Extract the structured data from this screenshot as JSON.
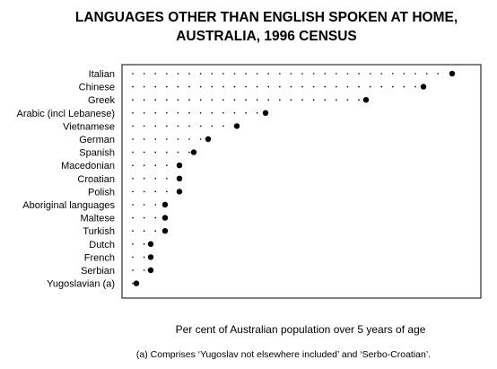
{
  "chart_data": {
    "type": "dot",
    "title_lines": [
      "LANGUAGES OTHER THAN ENGLISH SPOKEN AT HOME,",
      "AUSTRALIA, 1996 CENSUS"
    ],
    "xlabel": "Per cent of Australian population over 5 years of age",
    "footnote": "(a) Comprises ‘Yugoslav not elsewhere included’ and ‘Serbo-Croatian’.",
    "categories": [
      "Italian",
      "Chinese",
      "Greek",
      "Arabic (incl Lebanese)",
      "Vietnamese",
      "German",
      "Spanish",
      "Macedonian",
      "Croatian",
      "Polish",
      "Aboriginal languages",
      "Maltese",
      "Turkish",
      "Dutch",
      "French",
      "Serbian",
      "Yugoslavian (a)"
    ],
    "values": [
      2.3,
      2.1,
      1.7,
      1.0,
      0.8,
      0.6,
      0.5,
      0.4,
      0.4,
      0.4,
      0.3,
      0.3,
      0.3,
      0.2,
      0.2,
      0.2,
      0.1
    ],
    "xlim": [
      0,
      2.5
    ],
    "grid": false,
    "legend": "none",
    "colors": {
      "marker": "#000000",
      "leader": "#000000",
      "frame": "#000000"
    }
  }
}
